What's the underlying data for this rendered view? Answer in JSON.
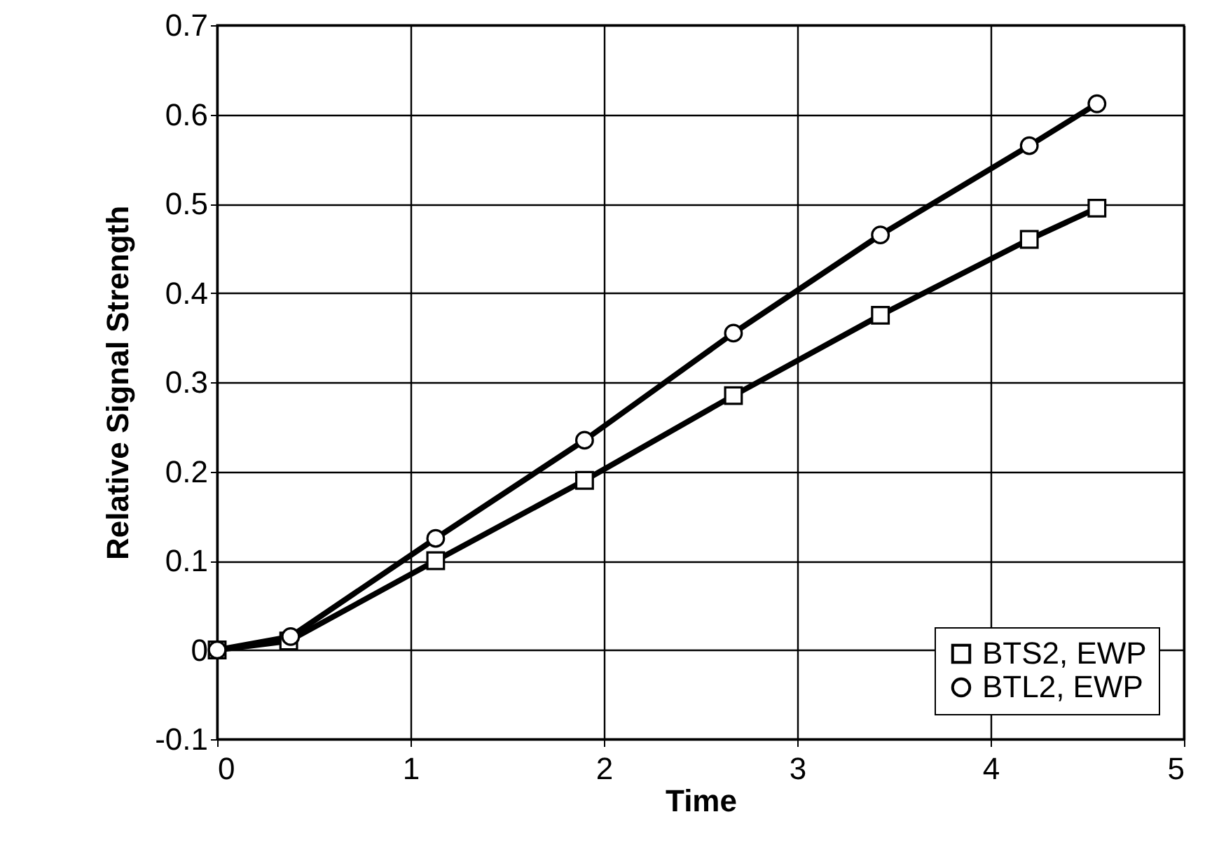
{
  "chart_data": {
    "type": "line",
    "xlabel": "Time",
    "ylabel": "Relative Signal Strength",
    "xlim": [
      0,
      5
    ],
    "xticks": [
      0,
      1,
      2,
      3,
      4,
      5
    ],
    "ylim": [
      -0.1,
      0.7
    ],
    "yticks": [
      -0.1,
      0,
      0.1,
      0.2,
      0.3,
      0.4,
      0.5,
      0.6,
      0.7
    ],
    "grid": true,
    "legend": "bottom right",
    "line_style": "solid",
    "series": [
      {
        "name": "BTS2, EWP",
        "color": "#000000",
        "marker": "square",
        "x": [
          0,
          0.37,
          1.13,
          1.9,
          2.67,
          3.43,
          4.2,
          4.55
        ],
        "values": [
          0,
          0.01,
          0.1,
          0.19,
          0.285,
          0.375,
          0.46,
          0.495
        ]
      },
      {
        "name": "BTL2, EWP",
        "color": "#000000",
        "marker": "circle",
        "x": [
          0,
          0.38,
          1.13,
          1.9,
          2.67,
          3.43,
          4.2,
          4.55
        ],
        "values": [
          0,
          0.015,
          0.125,
          0.235,
          0.355,
          0.465,
          0.565,
          0.612
        ]
      }
    ]
  }
}
